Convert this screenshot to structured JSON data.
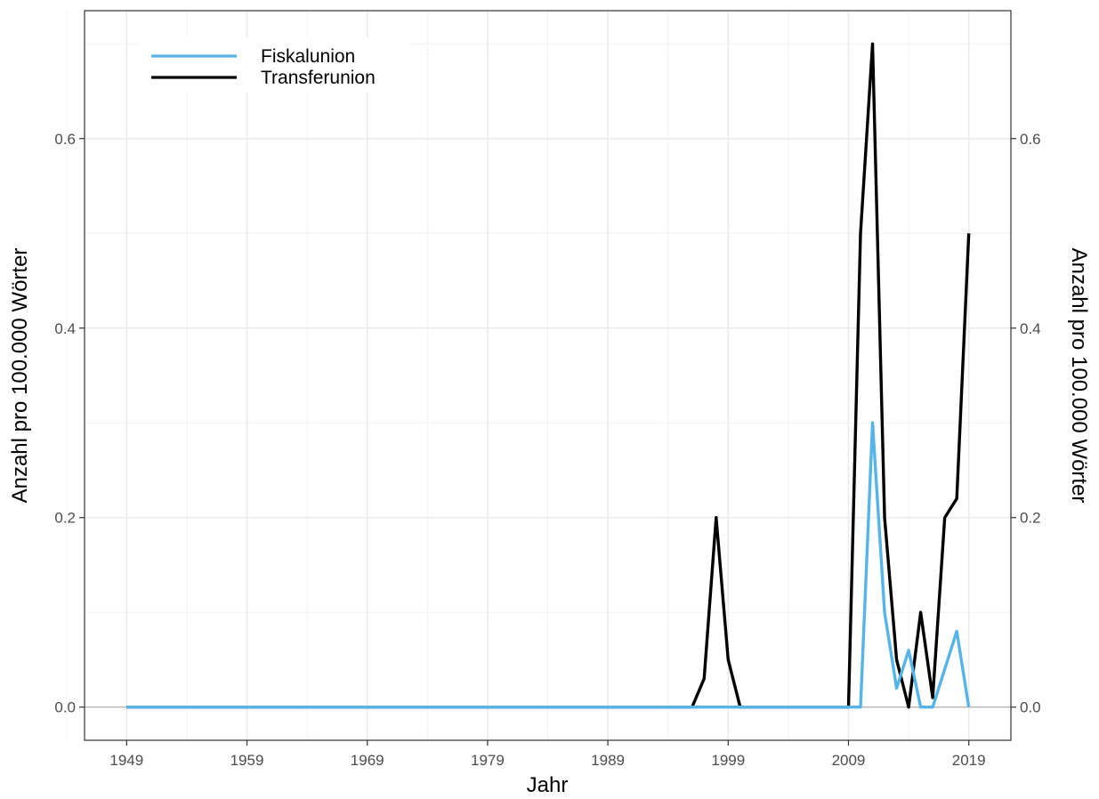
{
  "chart_data": {
    "type": "line",
    "xlabel": "Jahr",
    "ylabel_left": "Anzahl pro 100.000 Wörter",
    "ylabel_right": "Anzahl pro 100.000 Wörter",
    "x_ticks": [
      1949,
      1959,
      1969,
      1979,
      1989,
      1999,
      2009,
      2019
    ],
    "y_ticks": [
      0.0,
      0.2,
      0.4,
      0.6
    ],
    "y_tick_labels": [
      "0.0",
      "0.2",
      "0.4",
      "0.6"
    ],
    "xlim": [
      1945.5,
      2022.5
    ],
    "ylim": [
      -0.035,
      0.735
    ],
    "grid": true,
    "legend_position": "top-left",
    "series": [
      {
        "name": "Fiskalunion",
        "color": "#56B4E9",
        "points": [
          [
            1949,
            0
          ],
          [
            2010,
            0
          ],
          [
            2011,
            0.3
          ],
          [
            2012,
            0.1
          ],
          [
            2013,
            0.02
          ],
          [
            2014,
            0.06
          ],
          [
            2015,
            0
          ],
          [
            2016,
            0
          ],
          [
            2018,
            0.08
          ],
          [
            2019,
            0
          ]
        ]
      },
      {
        "name": "Transferunion",
        "color": "#000000",
        "points": [
          [
            1949,
            0
          ],
          [
            1996,
            0
          ],
          [
            1997,
            0.03
          ],
          [
            1998,
            0.2
          ],
          [
            1999,
            0.05
          ],
          [
            2000,
            0
          ],
          [
            2009,
            0
          ],
          [
            2010,
            0.5
          ],
          [
            2011,
            0.7
          ],
          [
            2012,
            0.2
          ],
          [
            2013,
            0.05
          ],
          [
            2014,
            0
          ],
          [
            2015,
            0.1
          ],
          [
            2016,
            0.01
          ],
          [
            2017,
            0.2
          ],
          [
            2018,
            0.22
          ],
          [
            2019,
            0.5
          ]
        ]
      }
    ]
  }
}
